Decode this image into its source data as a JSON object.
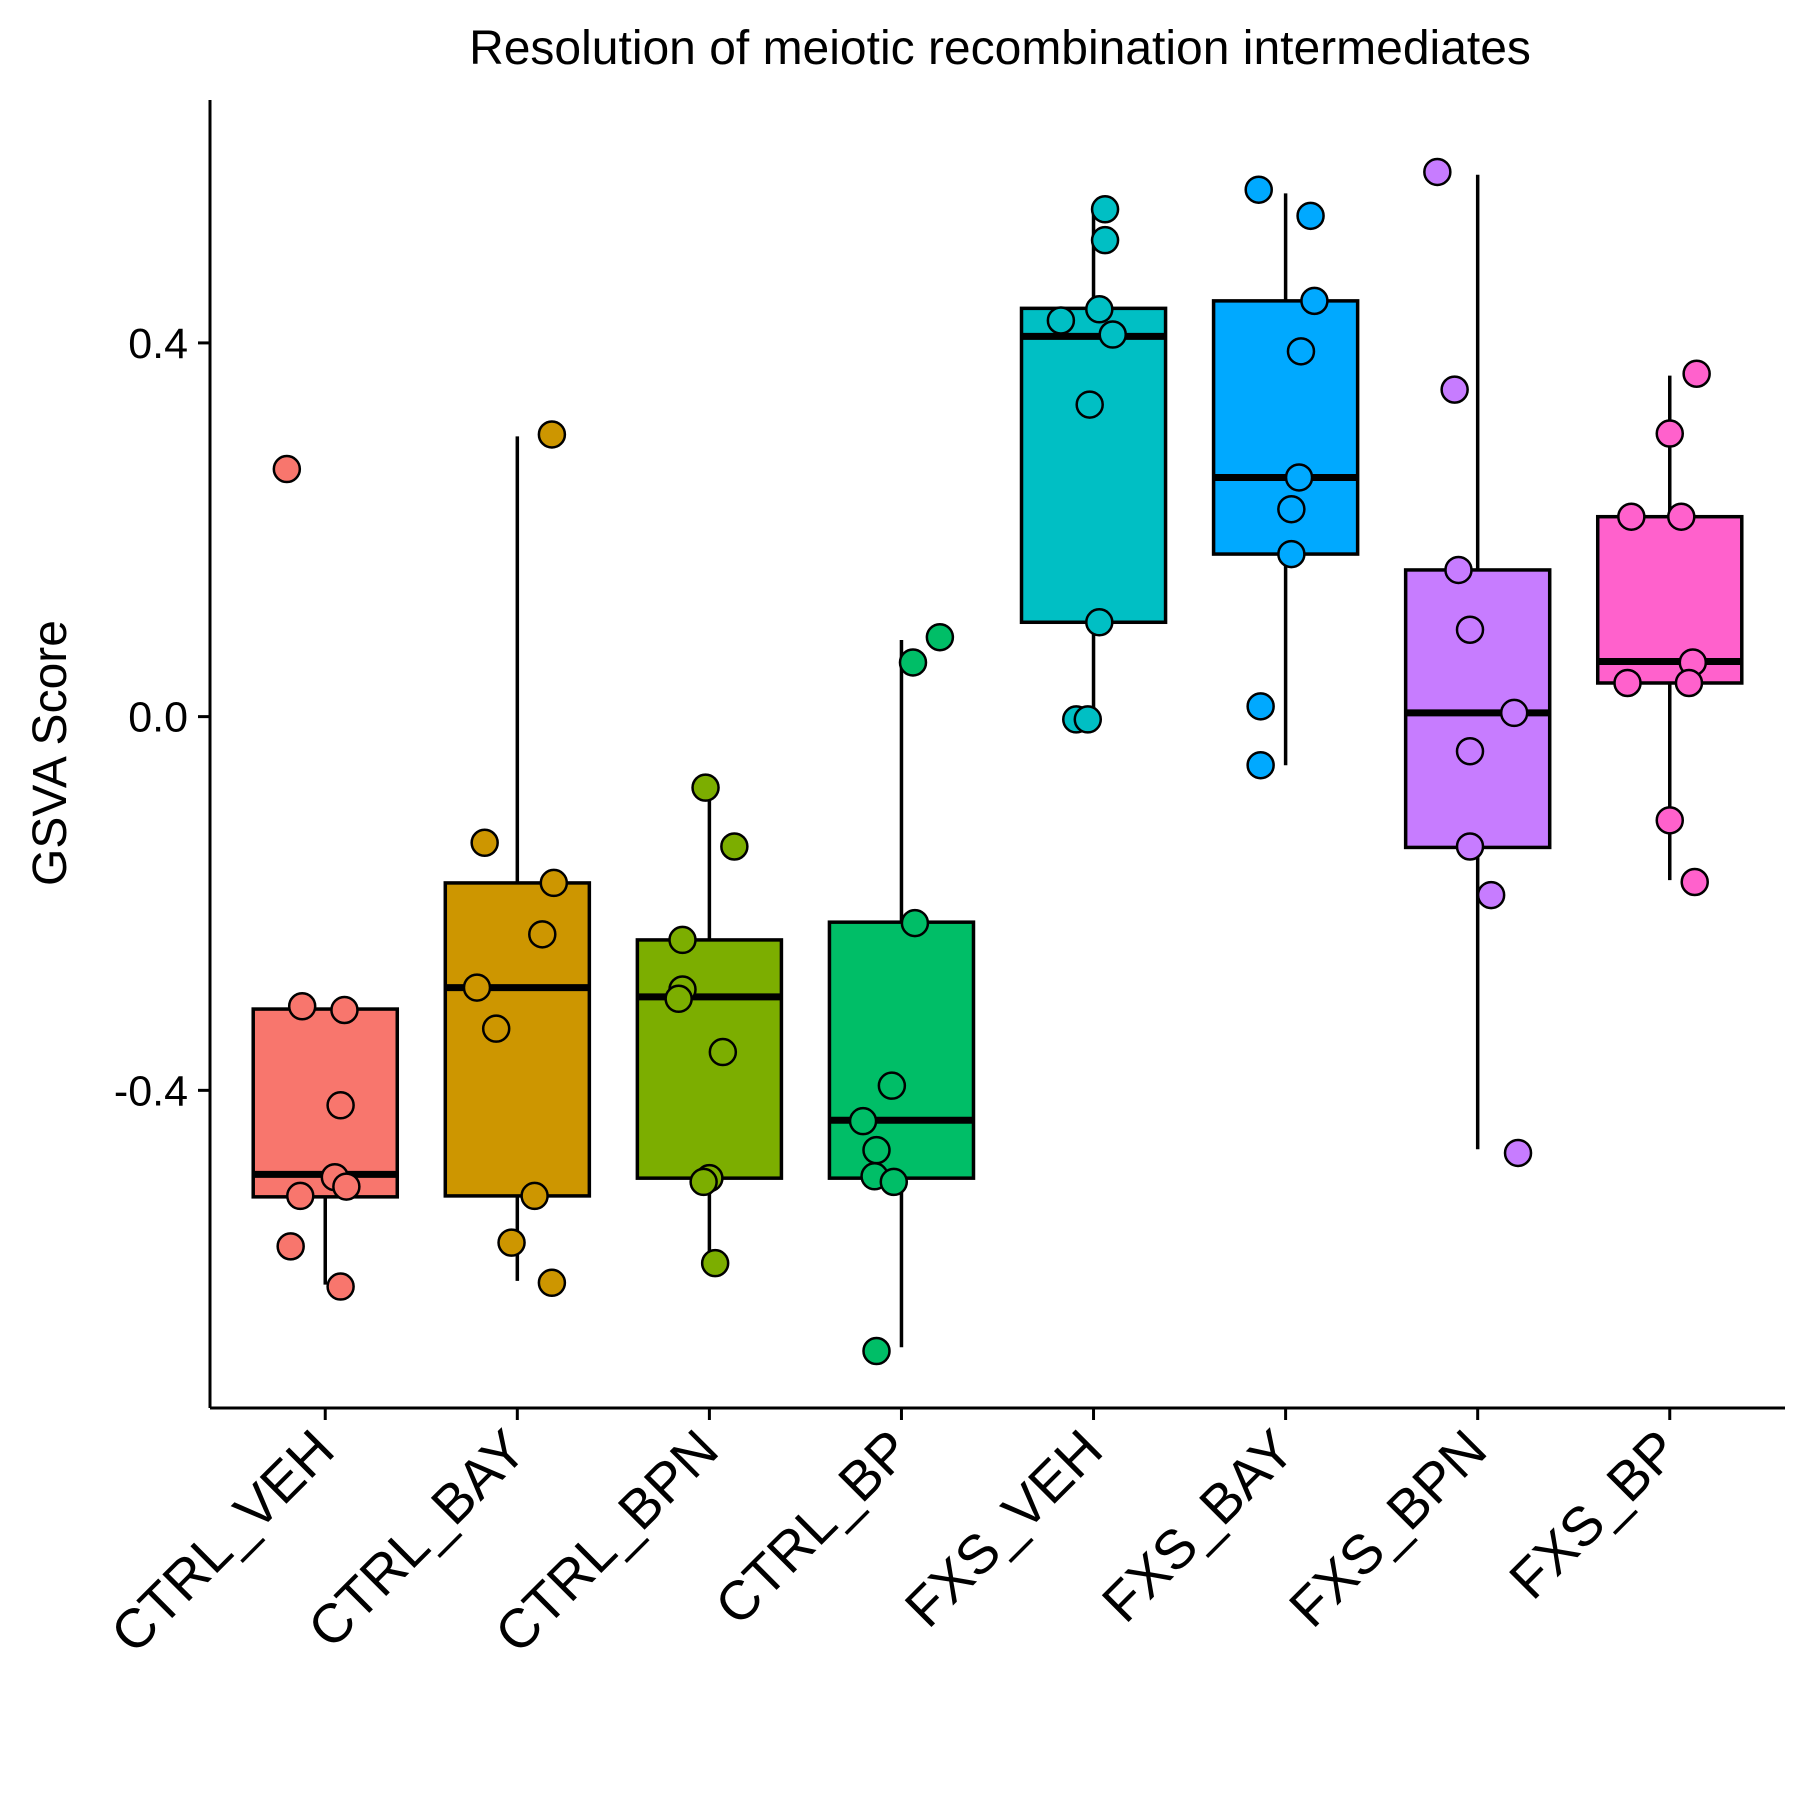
{
  "chart_data": {
    "type": "box",
    "title": "Resolution of meiotic recombination intermediates",
    "xlabel": "",
    "ylabel": "GSVA Score",
    "ylim": [
      -0.74,
      0.66
    ],
    "yticks": [
      -0.4,
      0.0,
      0.4
    ],
    "ytick_labels": [
      "-0.4",
      "0.0",
      "0.4"
    ],
    "grid": false,
    "legend": "none",
    "categories": [
      "CTRL_VEH",
      "CTRL_BAY",
      "CTRL_BPN",
      "CTRL_BP",
      "FXS_VEH",
      "FXS_BAY",
      "FXS_BPN",
      "FXS_BP"
    ],
    "groups": [
      {
        "name": "CTRL_VEH",
        "color": "#F8766D",
        "whisker_low": -0.608,
        "q1": -0.514,
        "median": -0.49,
        "q3": -0.313,
        "whisker_high": -0.313,
        "points": [
          {
            "y": 0.265,
            "jitter": -0.2
          },
          {
            "y": -0.31,
            "jitter": -0.12
          },
          {
            "y": -0.314,
            "jitter": 0.1
          },
          {
            "y": -0.416,
            "jitter": 0.08
          },
          {
            "y": -0.493,
            "jitter": 0.05
          },
          {
            "y": -0.503,
            "jitter": 0.11
          },
          {
            "y": -0.513,
            "jitter": -0.13
          },
          {
            "y": -0.567,
            "jitter": -0.18
          },
          {
            "y": -0.61,
            "jitter": 0.08
          }
        ]
      },
      {
        "name": "CTRL_BAY",
        "color": "#CD9600",
        "whisker_low": -0.604,
        "q1": -0.513,
        "median": -0.29,
        "q3": -0.178,
        "whisker_high": 0.3,
        "points": [
          {
            "y": 0.302,
            "jitter": 0.18
          },
          {
            "y": -0.135,
            "jitter": -0.17
          },
          {
            "y": -0.178,
            "jitter": 0.19
          },
          {
            "y": -0.233,
            "jitter": 0.13
          },
          {
            "y": -0.29,
            "jitter": -0.21
          },
          {
            "y": -0.334,
            "jitter": -0.11
          },
          {
            "y": -0.513,
            "jitter": 0.09
          },
          {
            "y": -0.563,
            "jitter": -0.03
          },
          {
            "y": -0.606,
            "jitter": 0.18
          }
        ]
      },
      {
        "name": "CTRL_BPN",
        "color": "#7CAE00",
        "whisker_low": -0.583,
        "q1": -0.494,
        "median": -0.3,
        "q3": -0.239,
        "whisker_high": -0.076,
        "points": [
          {
            "y": -0.076,
            "jitter": -0.02
          },
          {
            "y": -0.139,
            "jitter": 0.13
          },
          {
            "y": -0.239,
            "jitter": -0.14
          },
          {
            "y": -0.292,
            "jitter": -0.14
          },
          {
            "y": -0.302,
            "jitter": -0.16
          },
          {
            "y": -0.359,
            "jitter": 0.07
          },
          {
            "y": -0.494,
            "jitter": 0.0
          },
          {
            "y": -0.498,
            "jitter": -0.03
          },
          {
            "y": -0.585,
            "jitter": 0.03
          }
        ]
      },
      {
        "name": "CTRL_BP",
        "color": "#00BE67",
        "whisker_low": -0.675,
        "q1": -0.494,
        "median": -0.432,
        "q3": -0.22,
        "whisker_high": 0.082,
        "points": [
          {
            "y": 0.085,
            "jitter": 0.2
          },
          {
            "y": 0.058,
            "jitter": 0.06
          },
          {
            "y": -0.221,
            "jitter": 0.07
          },
          {
            "y": -0.395,
            "jitter": -0.05
          },
          {
            "y": -0.433,
            "jitter": -0.2
          },
          {
            "y": -0.464,
            "jitter": -0.13
          },
          {
            "y": -0.492,
            "jitter": -0.14
          },
          {
            "y": -0.498,
            "jitter": -0.04
          },
          {
            "y": -0.679,
            "jitter": -0.13
          }
        ]
      },
      {
        "name": "FXS_VEH",
        "color": "#00BFC4",
        "whisker_low": -0.003,
        "q1": 0.101,
        "median": 0.407,
        "q3": 0.437,
        "whisker_high": 0.538,
        "points": [
          {
            "y": 0.543,
            "jitter": 0.06
          },
          {
            "y": 0.51,
            "jitter": 0.06
          },
          {
            "y": 0.436,
            "jitter": 0.03
          },
          {
            "y": 0.424,
            "jitter": -0.17
          },
          {
            "y": 0.409,
            "jitter": 0.1
          },
          {
            "y": 0.334,
            "jitter": -0.02
          },
          {
            "y": 0.101,
            "jitter": 0.03
          },
          {
            "y": -0.003,
            "jitter": -0.09
          },
          {
            "y": -0.003,
            "jitter": -0.03
          }
        ]
      },
      {
        "name": "FXS_BAY",
        "color": "#00A9FF",
        "whisker_low": -0.052,
        "q1": 0.174,
        "median": 0.256,
        "q3": 0.445,
        "whisker_high": 0.56,
        "points": [
          {
            "y": 0.564,
            "jitter": -0.14
          },
          {
            "y": 0.536,
            "jitter": 0.13
          },
          {
            "y": 0.445,
            "jitter": 0.15
          },
          {
            "y": 0.391,
            "jitter": 0.08
          },
          {
            "y": 0.256,
            "jitter": 0.07
          },
          {
            "y": 0.222,
            "jitter": 0.03
          },
          {
            "y": 0.174,
            "jitter": 0.03
          },
          {
            "y": 0.011,
            "jitter": -0.13
          },
          {
            "y": -0.052,
            "jitter": -0.13
          }
        ]
      },
      {
        "name": "FXS_BPN",
        "color": "#C77CFF",
        "whisker_low": -0.463,
        "q1": -0.14,
        "median": 0.004,
        "q3": 0.157,
        "whisker_high": 0.58,
        "points": [
          {
            "y": 0.583,
            "jitter": -0.21
          },
          {
            "y": 0.35,
            "jitter": -0.12
          },
          {
            "y": 0.157,
            "jitter": -0.1
          },
          {
            "y": 0.093,
            "jitter": -0.04
          },
          {
            "y": 0.004,
            "jitter": 0.19
          },
          {
            "y": -0.037,
            "jitter": -0.04
          },
          {
            "y": -0.139,
            "jitter": -0.04
          },
          {
            "y": -0.191,
            "jitter": 0.07
          },
          {
            "y": -0.467,
            "jitter": 0.21
          }
        ]
      },
      {
        "name": "FXS_BP",
        "color": "#FF61CC",
        "whisker_low": -0.175,
        "q1": 0.036,
        "median": 0.059,
        "q3": 0.214,
        "whisker_high": 0.365,
        "points": [
          {
            "y": 0.367,
            "jitter": 0.14
          },
          {
            "y": 0.303,
            "jitter": 0.0
          },
          {
            "y": 0.214,
            "jitter": -0.2
          },
          {
            "y": 0.214,
            "jitter": 0.06
          },
          {
            "y": 0.058,
            "jitter": 0.12
          },
          {
            "y": 0.036,
            "jitter": -0.22
          },
          {
            "y": 0.036,
            "jitter": 0.1
          },
          {
            "y": -0.111,
            "jitter": 0.0
          },
          {
            "y": -0.177,
            "jitter": 0.13
          }
        ]
      }
    ]
  }
}
